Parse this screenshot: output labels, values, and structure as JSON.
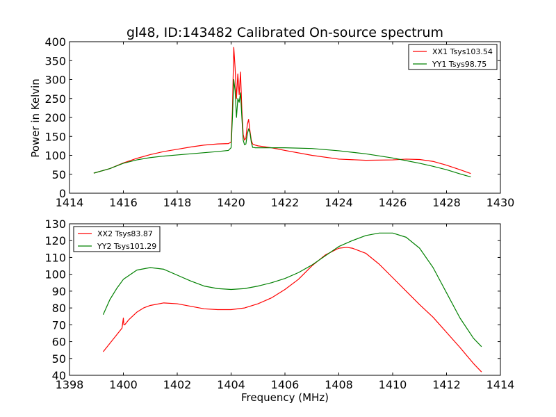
{
  "chart_data": [
    {
      "type": "line",
      "title": "gl48, ID:143482 Calibrated On-source spectrum",
      "xlabel": "",
      "ylabel": "Power in Kelvin",
      "xlim": [
        1414,
        1430
      ],
      "ylim": [
        0,
        400
      ],
      "xticks": [
        1414,
        1416,
        1418,
        1420,
        1422,
        1424,
        1426,
        1428,
        1430
      ],
      "yticks": [
        0,
        50,
        100,
        150,
        200,
        250,
        300,
        350,
        400
      ],
      "legend_position": "top-right",
      "series": [
        {
          "name": "XX1 Tsys103.54",
          "color": "#ff0000",
          "x": [
            1414.9,
            1415.5,
            1416,
            1416.5,
            1417,
            1417.5,
            1418,
            1418.5,
            1419,
            1419.5,
            1419.9,
            1420.0,
            1420.05,
            1420.1,
            1420.15,
            1420.2,
            1420.25,
            1420.3,
            1420.35,
            1420.4,
            1420.45,
            1420.5,
            1420.55,
            1420.6,
            1420.65,
            1420.7,
            1420.75,
            1420.8,
            1420.9,
            1421.0,
            1421.5,
            1422,
            1423,
            1424,
            1425,
            1426,
            1426.5,
            1427,
            1427.5,
            1428,
            1428.5,
            1428.9
          ],
          "y": [
            53,
            65,
            80,
            92,
            102,
            110,
            116,
            122,
            127,
            130,
            131,
            135,
            220,
            385,
            330,
            250,
            315,
            260,
            320,
            220,
            155,
            140,
            145,
            180,
            195,
            165,
            140,
            130,
            127,
            125,
            120,
            113,
            100,
            90,
            87,
            88,
            90,
            89,
            84,
            74,
            62,
            52
          ]
        },
        {
          "name": "YY1 Tsys98.75",
          "color": "#008000",
          "x": [
            1414.9,
            1415.5,
            1416,
            1416.5,
            1417,
            1417.5,
            1418,
            1418.5,
            1419,
            1419.5,
            1419.9,
            1420.0,
            1420.05,
            1420.1,
            1420.15,
            1420.2,
            1420.25,
            1420.3,
            1420.35,
            1420.4,
            1420.45,
            1420.5,
            1420.55,
            1420.6,
            1420.65,
            1420.7,
            1420.75,
            1420.8,
            1420.9,
            1421.0,
            1421.5,
            1422,
            1423,
            1424,
            1425,
            1426,
            1426.5,
            1427,
            1427.5,
            1428,
            1428.5,
            1428.9
          ],
          "y": [
            53,
            65,
            79,
            88,
            94,
            98,
            101,
            104,
            107,
            110,
            113,
            120,
            200,
            300,
            270,
            200,
            250,
            240,
            265,
            200,
            140,
            128,
            130,
            155,
            170,
            160,
            135,
            121,
            120,
            120,
            120,
            120,
            118,
            112,
            104,
            93,
            86,
            79,
            71,
            62,
            51,
            43
          ]
        }
      ]
    },
    {
      "type": "line",
      "title": "",
      "xlabel": "Frequency (MHz)",
      "ylabel": "",
      "xlim": [
        1398,
        1414
      ],
      "ylim": [
        40,
        130
      ],
      "xticks": [
        1398,
        1400,
        1402,
        1404,
        1406,
        1408,
        1410,
        1412,
        1414
      ],
      "yticks": [
        40,
        50,
        60,
        70,
        80,
        90,
        100,
        110,
        120,
        130
      ],
      "legend_position": "top-left",
      "series": [
        {
          "name": "XX2 Tsys83.87",
          "color": "#ff0000",
          "x": [
            1399.25,
            1399.5,
            1399.75,
            1399.95,
            1400.0,
            1400.02,
            1400.05,
            1400.2,
            1400.5,
            1400.75,
            1401.0,
            1401.5,
            1402.0,
            1402.5,
            1403.0,
            1403.5,
            1404.0,
            1404.5,
            1405.0,
            1405.5,
            1406.0,
            1406.5,
            1407.0,
            1407.5,
            1408.0,
            1408.3,
            1408.5,
            1409.0,
            1409.5,
            1410.0,
            1410.5,
            1411.0,
            1411.5,
            1412.0,
            1412.5,
            1413.0,
            1413.3
          ],
          "y": [
            54,
            59,
            64,
            68,
            74,
            70,
            70,
            73,
            77.5,
            80,
            81.5,
            83,
            82.5,
            81,
            79.5,
            79,
            79,
            80,
            82.5,
            86,
            91,
            97,
            105,
            111.5,
            115.5,
            116,
            115.5,
            112.5,
            106,
            98,
            90,
            82,
            74.5,
            65.5,
            56.5,
            47,
            42
          ]
        },
        {
          "name": "YY2 Tsys101.29",
          "color": "#008000",
          "x": [
            1399.25,
            1399.5,
            1399.75,
            1400.0,
            1400.5,
            1401.0,
            1401.5,
            1402.0,
            1402.5,
            1403.0,
            1403.5,
            1404.0,
            1404.5,
            1405.0,
            1405.5,
            1406.0,
            1406.5,
            1407.0,
            1407.5,
            1408.0,
            1408.5,
            1409.0,
            1409.5,
            1410.0,
            1410.5,
            1411.0,
            1411.5,
            1412.0,
            1412.5,
            1413.0,
            1413.3
          ],
          "y": [
            76,
            85,
            91.5,
            97,
            102.5,
            104,
            103,
            99.5,
            96,
            93,
            91.5,
            91,
            91.5,
            93,
            95,
            97.5,
            101,
            105.5,
            111,
            116.5,
            120,
            123,
            124.5,
            124.5,
            122,
            115.5,
            104,
            89,
            74,
            62,
            57
          ]
        }
      ]
    }
  ]
}
